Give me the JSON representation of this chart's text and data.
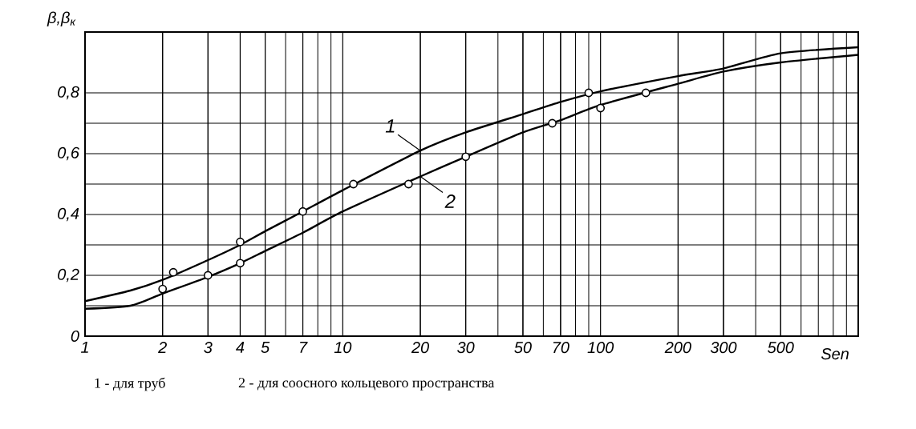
{
  "chart_data": {
    "type": "line",
    "ylabel": "β,β$_{к}$",
    "xlabel": "Sen",
    "log": "x",
    "grid": true,
    "xlim": [
      1,
      1000
    ],
    "ylim": [
      0,
      1
    ],
    "xticks": [
      1,
      2,
      3,
      4,
      5,
      7,
      10,
      20,
      30,
      50,
      70,
      100,
      200,
      300,
      500
    ],
    "yticks": [
      0,
      {
        "value": 0.2,
        "label": "0,2"
      },
      {
        "value": 0.4,
        "label": "0,4"
      },
      {
        "value": 0.6,
        "label": "0,6"
      },
      {
        "value": 0.8,
        "label": "0,8"
      }
    ],
    "series": [
      {
        "name": "1",
        "color": "#000000",
        "marker": "none",
        "x": [
          1,
          1.5,
          2,
          3,
          4,
          5,
          7,
          10,
          20,
          30,
          50,
          70,
          100,
          200,
          300,
          500,
          1000
        ],
        "values": [
          0.115,
          0.15,
          0.185,
          0.25,
          0.3,
          0.345,
          0.41,
          0.48,
          0.61,
          0.67,
          0.73,
          0.77,
          0.805,
          0.855,
          0.88,
          0.93,
          0.95
        ]
      },
      {
        "name": "2",
        "color": "#000000",
        "marker": "none",
        "x": [
          1,
          1.5,
          2,
          3,
          4,
          5,
          7,
          10,
          20,
          30,
          50,
          70,
          100,
          200,
          300,
          500,
          1000
        ],
        "values": [
          0.09,
          0.1,
          0.14,
          0.195,
          0.24,
          0.28,
          0.34,
          0.41,
          0.525,
          0.59,
          0.67,
          0.71,
          0.76,
          0.83,
          0.87,
          0.9,
          0.925
        ]
      },
      {
        "type": "scatter",
        "color": "#000000",
        "marker": "circle",
        "x": [
          2.2,
          4,
          7,
          11,
          90
        ],
        "values": [
          0.21,
          0.31,
          0.41,
          0.5,
          0.8
        ]
      },
      {
        "type": "scatter",
        "color": "#000000",
        "marker": "circle",
        "x": [
          2,
          3,
          4,
          18,
          30,
          65,
          100,
          150
        ],
        "values": [
          0.155,
          0.2,
          0.24,
          0.5,
          0.59,
          0.7,
          0.75,
          0.8
        ]
      }
    ],
    "annotations": [
      "1 - для труб",
      "2 - для соосного кольцевого пространства"
    ]
  }
}
